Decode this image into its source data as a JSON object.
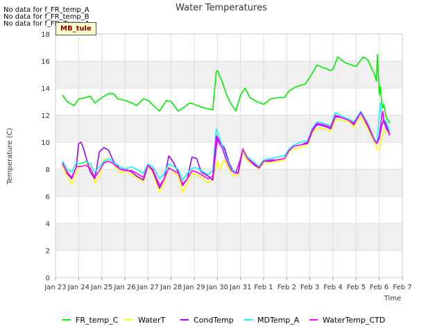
{
  "chart_data": {
    "type": "line",
    "title": "Water Temperatures",
    "xlabel": "Time",
    "ylabel": "Temperature (C)",
    "ylim": [
      0,
      18
    ],
    "yticks": [
      0,
      2,
      4,
      6,
      8,
      10,
      12,
      14,
      16,
      18
    ],
    "xlim": [
      0,
      15
    ],
    "xtick_labels": [
      "Jan 23",
      "Jan 24",
      "Jan 25",
      "Jan 26",
      "Jan 27",
      "Jan 28",
      "Jan 29",
      "Jan 30",
      "Jan 31",
      "Feb 1",
      "Feb 2",
      "Feb 3",
      "Feb 4",
      "Feb 5",
      "Feb 6",
      "Feb 7"
    ],
    "grid": true,
    "background_bands": "alternating gray",
    "legend_position": "bottom",
    "no_data_messages": [
      "No data for f_FR_temp_A",
      "No data for f_FR_temp_B",
      "No data for f_FD_Temp_1"
    ],
    "site_label": "MB_tule",
    "series": [
      {
        "name": "FR_temp_C",
        "color": "#00ee00",
        "x": [
          0.3,
          0.5,
          0.8,
          1.0,
          1.3,
          1.5,
          1.7,
          2.0,
          2.3,
          2.5,
          2.7,
          3.0,
          3.3,
          3.5,
          3.8,
          4.0,
          4.3,
          4.5,
          4.8,
          5.0,
          5.3,
          5.5,
          5.8,
          6.0,
          6.3,
          6.5,
          6.8,
          6.95,
          7.0,
          7.2,
          7.4,
          7.6,
          7.8,
          8.0,
          8.2,
          8.4,
          8.7,
          9.0,
          9.3,
          9.6,
          9.9,
          10.1,
          10.4,
          10.6,
          10.8,
          11.0,
          11.3,
          11.6,
          11.9,
          12.0,
          12.2,
          12.5,
          12.8,
          13.0,
          13.3,
          13.5,
          13.8,
          13.88,
          13.92,
          14.0,
          14.05,
          14.1,
          14.15,
          14.2,
          14.3,
          14.4,
          14.45
        ],
        "y": [
          13.5,
          13.0,
          12.7,
          13.2,
          13.3,
          13.4,
          12.9,
          13.3,
          13.6,
          13.6,
          13.2,
          13.1,
          12.9,
          12.7,
          13.2,
          13.1,
          12.6,
          12.3,
          13.1,
          13.0,
          12.3,
          12.5,
          12.9,
          12.8,
          12.6,
          12.5,
          12.4,
          15.2,
          15.3,
          14.5,
          13.5,
          12.8,
          12.3,
          13.5,
          14.0,
          13.3,
          13.0,
          12.8,
          13.2,
          13.3,
          13.3,
          13.8,
          14.1,
          14.2,
          14.3,
          14.8,
          15.7,
          15.5,
          15.3,
          15.4,
          16.3,
          15.9,
          15.7,
          15.6,
          16.3,
          16.1,
          15.0,
          14.5,
          16.5,
          13.5,
          14.1,
          13.0,
          12.5,
          12.8,
          11.8,
          11.6,
          11.4
        ]
      },
      {
        "name": "WaterT",
        "color": "#ffff00",
        "x": [
          0.3,
          0.5,
          0.7,
          0.9,
          1.1,
          1.3,
          1.5,
          1.7,
          1.9,
          2.1,
          2.3,
          2.5,
          2.8,
          3.0,
          3.3,
          3.5,
          3.8,
          4.0,
          4.2,
          4.5,
          4.7,
          4.9,
          5.1,
          5.3,
          5.5,
          5.7,
          5.9,
          6.1,
          6.3,
          6.6,
          6.8,
          7.0,
          7.1,
          7.3,
          7.5,
          7.7,
          7.9,
          8.1,
          8.3,
          8.6,
          8.8,
          9.0,
          9.3,
          9.6,
          9.9,
          10.1,
          10.3,
          10.6,
          10.9,
          11.1,
          11.3,
          11.6,
          11.9,
          12.1,
          12.4,
          12.7,
          12.9,
          13.2,
          13.5,
          13.8,
          13.9,
          14.0,
          14.1,
          14.2,
          14.3,
          14.45
        ],
        "y": [
          8.3,
          7.5,
          6.9,
          7.8,
          8.5,
          8.5,
          8.2,
          7.0,
          7.5,
          8.8,
          8.6,
          8.4,
          7.7,
          7.9,
          7.6,
          7.4,
          7.1,
          8.2,
          7.8,
          6.3,
          7.0,
          8.2,
          7.8,
          7.5,
          6.3,
          7.0,
          7.7,
          7.6,
          7.4,
          7.0,
          7.3,
          8.6,
          8.0,
          8.7,
          8.0,
          7.5,
          7.6,
          9.3,
          8.6,
          8.3,
          8.0,
          8.5,
          8.5,
          8.6,
          8.7,
          9.3,
          9.5,
          9.6,
          9.8,
          10.7,
          11.0,
          11.0,
          10.8,
          11.7,
          11.6,
          11.5,
          11.1,
          11.9,
          11.0,
          10.0,
          9.5,
          9.5,
          10.2,
          10.9,
          10.8,
          10.6
        ]
      },
      {
        "name": "CondTemp",
        "color": "#a000ff",
        "x": [
          0.3,
          0.5,
          0.7,
          0.9,
          1.0,
          1.1,
          1.2,
          1.3,
          1.5,
          1.7,
          1.9,
          2.1,
          2.3,
          2.5,
          2.8,
          3.0,
          3.3,
          3.5,
          3.8,
          4.0,
          4.2,
          4.5,
          4.7,
          4.9,
          5.1,
          5.3,
          5.5,
          5.7,
          5.9,
          6.1,
          6.3,
          6.6,
          6.8,
          7.0,
          7.1,
          7.3,
          7.5,
          7.7,
          7.9,
          8.1,
          8.3,
          8.6,
          8.8,
          9.0,
          9.3,
          9.6,
          9.9,
          10.1,
          10.3,
          10.6,
          10.9,
          11.1,
          11.3,
          11.6,
          11.9,
          12.1,
          12.4,
          12.7,
          12.9,
          13.2,
          13.5,
          13.8,
          13.9,
          14.0,
          14.1,
          14.2,
          14.3,
          14.45
        ],
        "y": [
          8.5,
          7.7,
          7.3,
          8.2,
          9.9,
          10.0,
          9.6,
          9.0,
          7.8,
          7.3,
          9.3,
          9.6,
          9.4,
          8.6,
          8.0,
          8.0,
          7.8,
          7.5,
          7.2,
          8.3,
          7.9,
          6.6,
          7.3,
          9.0,
          8.5,
          7.8,
          6.8,
          7.3,
          8.9,
          8.8,
          7.8,
          7.5,
          7.2,
          10.4,
          10.0,
          9.6,
          8.5,
          7.8,
          7.7,
          9.5,
          8.8,
          8.3,
          8.1,
          8.6,
          8.6,
          8.7,
          8.8,
          9.4,
          9.7,
          9.8,
          9.9,
          10.8,
          11.3,
          11.2,
          11.0,
          11.9,
          11.8,
          11.6,
          11.3,
          12.2,
          11.2,
          10.1,
          9.9,
          10.3,
          11.2,
          11.7,
          11.3,
          10.5
        ]
      },
      {
        "name": "MDTemp_A",
        "color": "#00ffff",
        "x": [
          0.3,
          0.5,
          0.7,
          0.9,
          1.1,
          1.3,
          1.5,
          1.7,
          1.9,
          2.1,
          2.3,
          2.5,
          2.8,
          3.0,
          3.3,
          3.5,
          3.8,
          4.0,
          4.2,
          4.5,
          4.7,
          4.9,
          5.1,
          5.3,
          5.5,
          5.7,
          5.9,
          6.1,
          6.3,
          6.6,
          6.8,
          6.95,
          7.05,
          7.2,
          7.4,
          7.6,
          7.8,
          8.0,
          8.1,
          8.3,
          8.6,
          8.8,
          9.0,
          9.3,
          9.6,
          9.9,
          10.1,
          10.3,
          10.6,
          10.9,
          11.1,
          11.3,
          11.6,
          11.9,
          12.1,
          12.4,
          12.7,
          12.9,
          13.2,
          13.5,
          13.8,
          13.9,
          14.0,
          14.05,
          14.1,
          14.2,
          14.3,
          14.45
        ],
        "y": [
          8.6,
          8.0,
          7.8,
          8.5,
          8.4,
          8.6,
          8.4,
          7.8,
          8.2,
          8.6,
          8.8,
          8.5,
          8.2,
          8.0,
          8.2,
          8.0,
          7.7,
          8.4,
          8.2,
          7.3,
          7.7,
          8.4,
          8.2,
          8.0,
          7.2,
          7.7,
          8.1,
          8.1,
          7.9,
          7.6,
          7.9,
          11.0,
          10.5,
          9.8,
          8.8,
          8.0,
          7.8,
          8.8,
          9.5,
          8.9,
          8.5,
          8.2,
          8.7,
          8.8,
          8.9,
          9.0,
          9.5,
          9.8,
          10.0,
          10.1,
          11.0,
          11.5,
          11.4,
          11.2,
          12.2,
          11.9,
          11.7,
          11.5,
          12.3,
          11.4,
          10.2,
          10.0,
          12.0,
          12.9,
          11.8,
          11.7,
          11.5,
          10.8
        ]
      },
      {
        "name": "WaterTemp_CTD",
        "color": "#ff00ff",
        "x": [
          0.3,
          0.5,
          0.7,
          0.9,
          1.1,
          1.3,
          1.5,
          1.7,
          1.9,
          2.1,
          2.3,
          2.5,
          2.8,
          3.0,
          3.3,
          3.5,
          3.8,
          4.0,
          4.2,
          4.5,
          4.7,
          4.9,
          5.1,
          5.3,
          5.5,
          5.7,
          5.9,
          6.1,
          6.3,
          6.6,
          6.8,
          6.95,
          7.05,
          7.2,
          7.4,
          7.6,
          7.8,
          8.0,
          8.1,
          8.3,
          8.6,
          8.8,
          9.0,
          9.3,
          9.6,
          9.9,
          10.1,
          10.3,
          10.6,
          10.9,
          11.1,
          11.3,
          11.6,
          11.9,
          12.1,
          12.4,
          12.7,
          12.9,
          13.2,
          13.5,
          13.8,
          13.9,
          14.0,
          14.1,
          14.15,
          14.2,
          14.3,
          14.45
        ],
        "y": [
          8.4,
          7.8,
          7.4,
          8.2,
          8.2,
          8.3,
          8.1,
          7.4,
          7.9,
          8.5,
          8.6,
          8.4,
          8.0,
          7.9,
          7.9,
          7.7,
          7.4,
          8.3,
          8.0,
          6.8,
          7.3,
          8.1,
          7.9,
          7.7,
          6.9,
          7.3,
          7.9,
          7.8,
          7.6,
          7.3,
          7.5,
          10.5,
          10.0,
          9.6,
          8.6,
          7.9,
          7.7,
          8.8,
          9.5,
          8.8,
          8.4,
          8.1,
          8.6,
          8.7,
          8.7,
          8.8,
          9.4,
          9.7,
          9.8,
          10.0,
          10.9,
          11.4,
          11.3,
          11.1,
          12.0,
          11.8,
          11.6,
          11.4,
          12.2,
          11.3,
          10.1,
          9.9,
          10.5,
          11.8,
          12.3,
          11.5,
          11.0,
          10.6
        ]
      }
    ]
  }
}
